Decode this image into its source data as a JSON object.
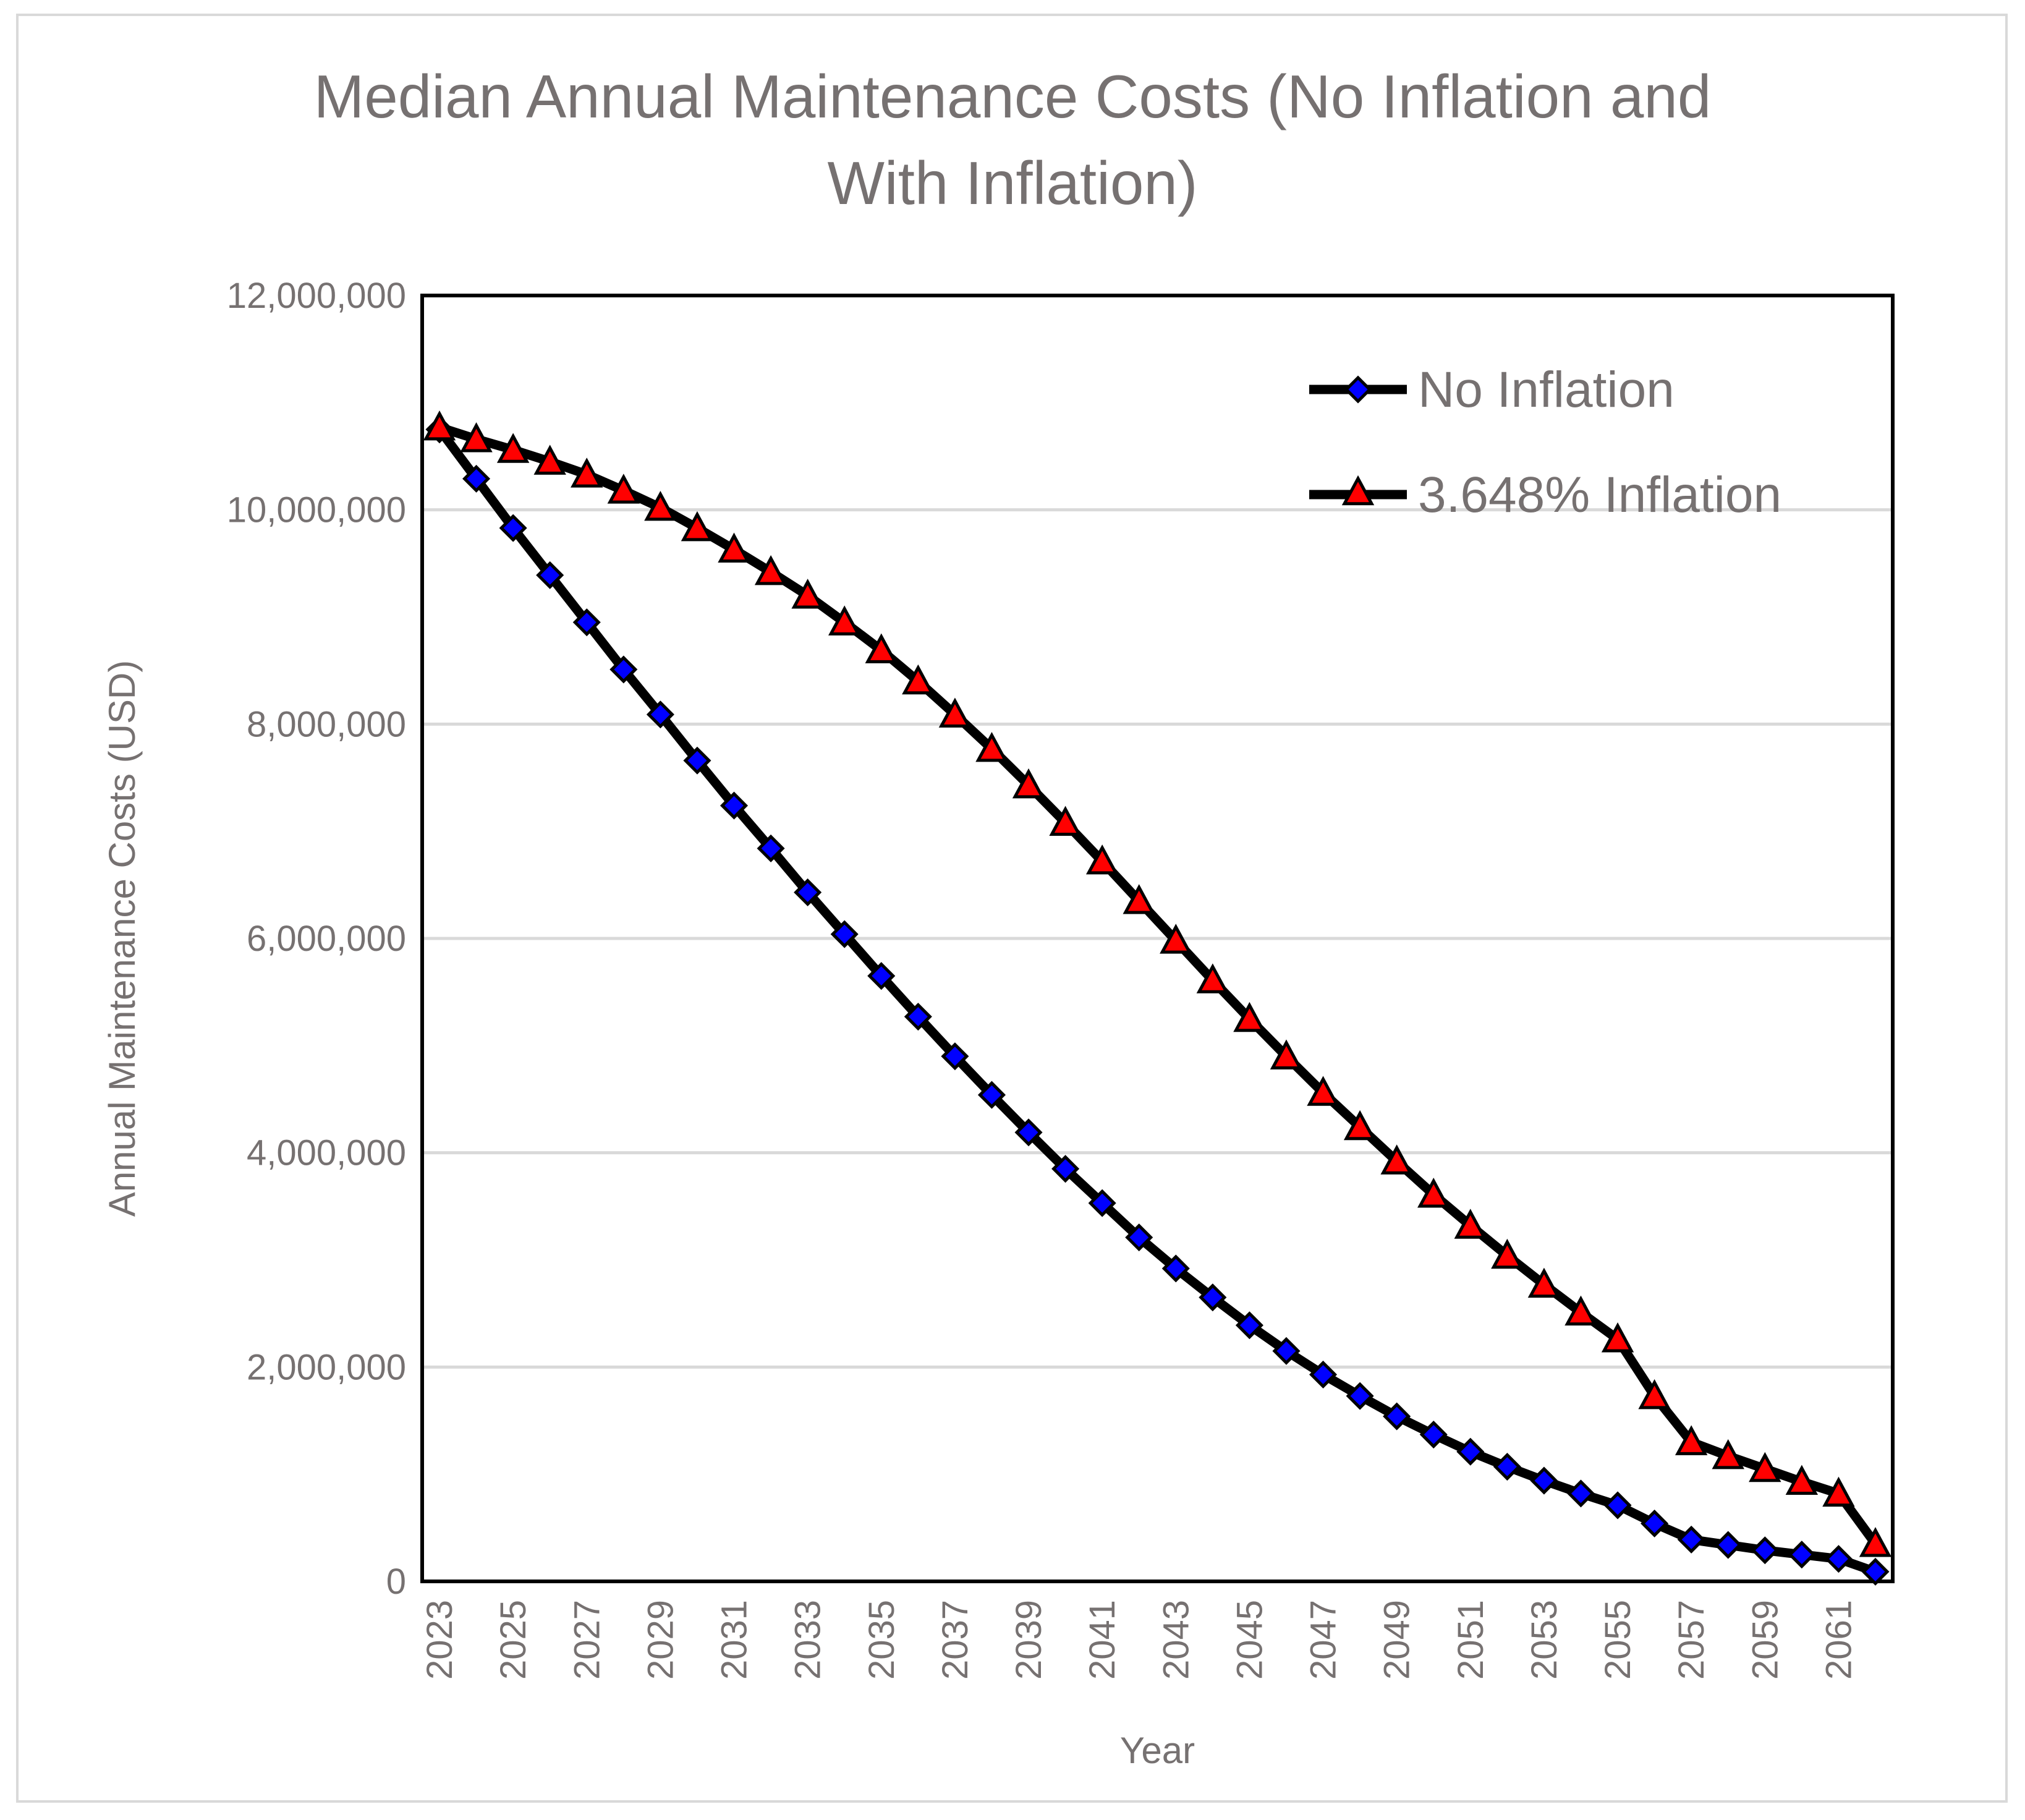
{
  "chart_data": {
    "type": "line",
    "title_line1": "Median Annual Maintenance Costs (No Inflation and",
    "title_line2": "With Inflation)",
    "xlabel": "Year",
    "ylabel": "Annual Maintenance Costs (USD)",
    "ylim": [
      0,
      12000000
    ],
    "y_ticks": [
      {
        "value": 0,
        "label": "0"
      },
      {
        "value": 2000000,
        "label": "2,000,000"
      },
      {
        "value": 4000000,
        "label": "4,000,000"
      },
      {
        "value": 6000000,
        "label": "6,000,000"
      },
      {
        "value": 8000000,
        "label": "8,000,000"
      },
      {
        "value": 10000000,
        "label": "10,000,000"
      },
      {
        "value": 12000000,
        "label": "12,000,000"
      }
    ],
    "x_tick_labels": [
      "2023",
      "2025",
      "2027",
      "2029",
      "2031",
      "2033",
      "2035",
      "2037",
      "2039",
      "2041",
      "2043",
      "2045",
      "2047",
      "2049",
      "2051",
      "2053",
      "2055",
      "2057",
      "2059",
      "2061"
    ],
    "x": [
      2023,
      2024,
      2025,
      2026,
      2027,
      2028,
      2029,
      2030,
      2031,
      2032,
      2033,
      2034,
      2035,
      2036,
      2037,
      2038,
      2039,
      2040,
      2041,
      2042,
      2043,
      2044,
      2045,
      2046,
      2047,
      2048,
      2049,
      2050,
      2051,
      2052,
      2053,
      2054,
      2055,
      2056,
      2057,
      2058,
      2059,
      2060,
      2061,
      2062
    ],
    "gridlines": "horizontal",
    "legend_position": "top-right",
    "series": [
      {
        "name": "No Inflation",
        "marker": "diamond",
        "marker_color": "#0000ff",
        "values": [
          10750000,
          10290000,
          9830000,
          9390000,
          8950000,
          8510000,
          8090000,
          7660000,
          7240000,
          6840000,
          6430000,
          6040000,
          5650000,
          5270000,
          4900000,
          4540000,
          4190000,
          3850000,
          3530000,
          3210000,
          2920000,
          2650000,
          2390000,
          2150000,
          1930000,
          1730000,
          1540000,
          1370000,
          1210000,
          1070000,
          940000,
          820000,
          710000,
          540000,
          390000,
          340000,
          290000,
          250000,
          210000,
          90000
        ]
      },
      {
        "name": "3.648% Inflation",
        "marker": "triangle",
        "marker_color": "#ff0000",
        "values": [
          10770000,
          10660000,
          10560000,
          10450000,
          10330000,
          10180000,
          10020000,
          9830000,
          9630000,
          9420000,
          9200000,
          8950000,
          8690000,
          8400000,
          8090000,
          7770000,
          7430000,
          7080000,
          6720000,
          6350000,
          5980000,
          5610000,
          5250000,
          4900000,
          4560000,
          4240000,
          3920000,
          3610000,
          3320000,
          3040000,
          2770000,
          2510000,
          2260000,
          1730000,
          1300000,
          1170000,
          1050000,
          930000,
          820000,
          350000
        ]
      }
    ]
  }
}
